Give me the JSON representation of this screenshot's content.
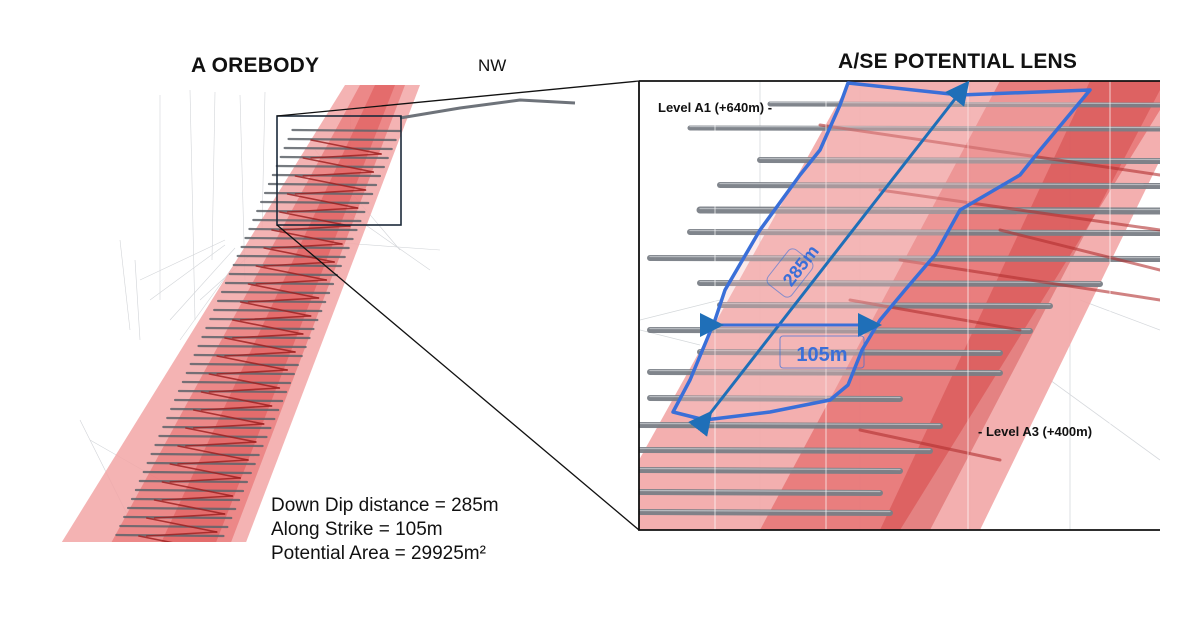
{
  "titles": {
    "left": "A OREBODY",
    "right": "A/SE  POTENTIAL LENS",
    "direction": "NW"
  },
  "stats": {
    "line1": "Down Dip distance = 285m",
    "line2": "Along Strike = 105m",
    "line3": "Potential Area = 29925m²"
  },
  "levels": {
    "top": "Level A1 (+640m) -",
    "bottom": "- Level A3 (+400m)"
  },
  "dimensions": {
    "dip": "285m",
    "strike": "105m"
  },
  "colors": {
    "orebody": "#e84a4a",
    "drill": "#7a7f86",
    "outline": "#3a6fd8",
    "arrow": "#1f6fb8",
    "frame": "#1c2a3a"
  }
}
